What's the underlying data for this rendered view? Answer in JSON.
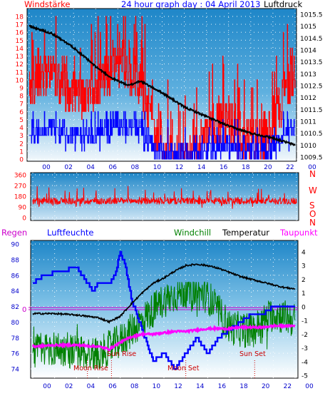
{
  "top": {
    "title": "24 hour graph day : 04 April 2013",
    "left_label": "Windstärke",
    "right_label": "Luftdruck"
  },
  "dir": {
    "labels": [
      "N",
      "W",
      "S",
      "O",
      "N"
    ]
  },
  "bottom": {
    "labels": {
      "regen": "Regen",
      "feuchte": "Luftfeuchte",
      "windchill": "Windchill",
      "temperatur": "Temperatur",
      "taupunkt": "Taupunkt",
      "zero_marker": "0"
    },
    "events": {
      "moon_rise": "Moon Rise",
      "sun_rise": "Sun Rise",
      "moon_set": "Moon Set",
      "sun_set": "Sun Set"
    }
  },
  "colors": {
    "wind_gust": "#ff0000",
    "wind_avg": "#0000ff",
    "pressure": "#000000",
    "direction": "#ff0000",
    "humidity": "#0000ff",
    "windchill": "#008000",
    "temperature": "#000000",
    "dewpoint": "#ff00ff",
    "regen": "#cc00cc"
  },
  "chart_data": [
    {
      "type": "line",
      "title": "24 hour graph day : 04 April 2013",
      "x_ticks": [
        "00",
        "02",
        "04",
        "06",
        "08",
        "10",
        "12",
        "14",
        "16",
        "18",
        "20",
        "22",
        "00"
      ],
      "left_axis": {
        "label": "Windstärke",
        "ticks": [
          0,
          1,
          2,
          3,
          4,
          5,
          6,
          7,
          8,
          9,
          10,
          11,
          12,
          13,
          14,
          15,
          16,
          17,
          18
        ],
        "ylim": [
          0,
          18
        ]
      },
      "right_axis": {
        "label": "Luftdruck",
        "ticks": [
          1009.5,
          1010,
          1010.5,
          1011,
          1011.5,
          1012,
          1012.5,
          1013,
          1013.5,
          1014,
          1014.5,
          1015,
          1015.5
        ],
        "ylim": [
          1009.25,
          1015.75
        ]
      },
      "series": [
        {
          "name": "Luftdruck",
          "axis": "right",
          "x": [
            0,
            2,
            4,
            6,
            7.5,
            9,
            10,
            12,
            14,
            16,
            18,
            20,
            22,
            24
          ],
          "values": [
            1015.0,
            1014.7,
            1014.1,
            1013.3,
            1012.8,
            1012.5,
            1012.7,
            1012.2,
            1011.6,
            1011.2,
            1010.8,
            1010.5,
            1010.3,
            1010.0
          ]
        }
      ]
    },
    {
      "type": "line",
      "title": "",
      "x_ticks": [
        "00",
        "02",
        "04",
        "06",
        "08",
        "10",
        "12",
        "14",
        "16",
        "18",
        "20",
        "22",
        "00"
      ],
      "left_axis": {
        "ticks": [
          0,
          90,
          180,
          270,
          360
        ],
        "ylim": [
          0,
          360
        ]
      },
      "right_axis": {
        "ticks": [
          "N",
          "W",
          "S",
          "O",
          "N"
        ]
      },
      "series": []
    },
    {
      "type": "line",
      "title": "",
      "x_ticks": [
        "00",
        "02",
        "04",
        "06",
        "08",
        "10",
        "12",
        "14",
        "16",
        "18",
        "20",
        "22",
        "00"
      ],
      "left_axis": {
        "label": "Luftfeuchte",
        "ticks": [
          74,
          76,
          78,
          80,
          82,
          84,
          86,
          88,
          90
        ],
        "ylim": [
          73,
          90
        ]
      },
      "right_axis": {
        "label": "Temperatur",
        "ticks": [
          -5,
          -4,
          -3,
          -2,
          -1,
          0,
          1,
          2,
          3,
          4
        ],
        "ylim": [
          -5.2,
          4.3
        ]
      },
      "series": [
        {
          "name": "Luftfeuchte",
          "axis": "left",
          "x": [
            0,
            1,
            4,
            4.5,
            5.5,
            6,
            7,
            7.5,
            8,
            8.5,
            9,
            10,
            11,
            12,
            13,
            14,
            15,
            16,
            17,
            18,
            19,
            20,
            21,
            22,
            23,
            24
          ],
          "values": [
            85,
            86,
            87,
            86,
            84,
            85,
            85,
            86,
            89,
            87,
            83,
            79,
            75,
            76,
            74,
            76,
            78,
            76,
            78,
            79,
            80,
            81,
            81,
            82,
            82,
            82
          ]
        },
        {
          "name": "Temperatur",
          "axis": "right",
          "x": [
            0,
            2,
            4,
            6,
            7,
            8,
            9,
            10,
            11,
            12,
            13,
            14,
            15,
            16,
            17,
            18,
            19,
            20,
            21,
            22,
            23,
            24
          ],
          "values": [
            -0.5,
            -0.5,
            -0.6,
            -0.8,
            -1.1,
            -0.7,
            0.2,
            1.0,
            1.7,
            2.1,
            2.6,
            3.0,
            3.1,
            3.0,
            2.8,
            2.5,
            2.2,
            2.0,
            1.8,
            1.6,
            1.4,
            1.3
          ]
        },
        {
          "name": "Windchill",
          "axis": "right",
          "x": [
            0,
            2,
            4,
            6,
            8,
            10,
            12,
            14,
            16,
            18,
            20,
            22,
            24
          ],
          "values": [
            -3.2,
            -3.0,
            -3.3,
            -3.5,
            -2.5,
            -1.0,
            0.5,
            1.2,
            0.8,
            -1.5,
            -1.8,
            -0.5,
            -1.0
          ]
        },
        {
          "name": "Taupunkt",
          "axis": "right",
          "x": [
            0,
            2,
            4,
            6,
            7,
            8,
            9,
            10,
            11,
            12,
            13,
            14,
            15,
            16,
            17,
            18,
            19,
            20,
            21,
            22,
            23,
            24
          ],
          "values": [
            -2.9,
            -2.8,
            -2.8,
            -2.9,
            -3.1,
            -2.6,
            -2.2,
            -2.0,
            -2.0,
            -1.9,
            -1.8,
            -1.8,
            -1.7,
            -1.6,
            -1.6,
            -1.6,
            -1.5,
            -1.5,
            -1.5,
            -1.4,
            -1.4,
            -1.4
          ]
        }
      ],
      "events": [
        {
          "label": "Moon Rise",
          "x": 5.0
        },
        {
          "label": "Sun Rise",
          "x": 7.2
        },
        {
          "label": "Moon Set",
          "x": 14.0
        },
        {
          "label": "Sun Set",
          "x": 20.3
        }
      ]
    }
  ]
}
